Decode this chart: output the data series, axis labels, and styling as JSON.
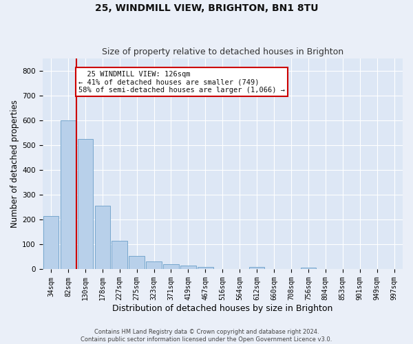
{
  "title": "25, WINDMILL VIEW, BRIGHTON, BN1 8TU",
  "subtitle": "Size of property relative to detached houses in Brighton",
  "xlabel": "Distribution of detached houses by size in Brighton",
  "ylabel": "Number of detached properties",
  "footer_line1": "Contains HM Land Registry data © Crown copyright and database right 2024.",
  "footer_line2": "Contains public sector information licensed under the Open Government Licence v3.0.",
  "annotation_line1": "25 WINDMILL VIEW: 126sqm",
  "annotation_line2": "← 41% of detached houses are smaller (749)",
  "annotation_line3": "58% of semi-detached houses are larger (1,066) →",
  "bar_labels": [
    "34sqm",
    "82sqm",
    "130sqm",
    "178sqm",
    "227sqm",
    "275sqm",
    "323sqm",
    "371sqm",
    "419sqm",
    "467sqm",
    "516sqm",
    "564sqm",
    "612sqm",
    "660sqm",
    "708sqm",
    "756sqm",
    "804sqm",
    "853sqm",
    "901sqm",
    "949sqm",
    "997sqm"
  ],
  "bar_values": [
    215,
    600,
    525,
    255,
    115,
    53,
    31,
    20,
    15,
    10,
    0,
    0,
    10,
    0,
    0,
    8,
    0,
    0,
    0,
    0,
    0
  ],
  "bar_color": "#b8d0ea",
  "bar_edge_color": "#6a9fc8",
  "vline_x": 1.5,
  "vline_color": "#cc0000",
  "ylim": [
    0,
    850
  ],
  "yticks": [
    0,
    100,
    200,
    300,
    400,
    500,
    600,
    700,
    800
  ],
  "bg_color": "#eaeff8",
  "plot_bg_color": "#dde7f5",
  "grid_color": "#ffffff",
  "annotation_box_color": "#cc0000",
  "title_fontsize": 10,
  "subtitle_fontsize": 9,
  "axis_label_fontsize": 8.5,
  "tick_fontsize": 7,
  "annotation_fontsize": 7.5
}
